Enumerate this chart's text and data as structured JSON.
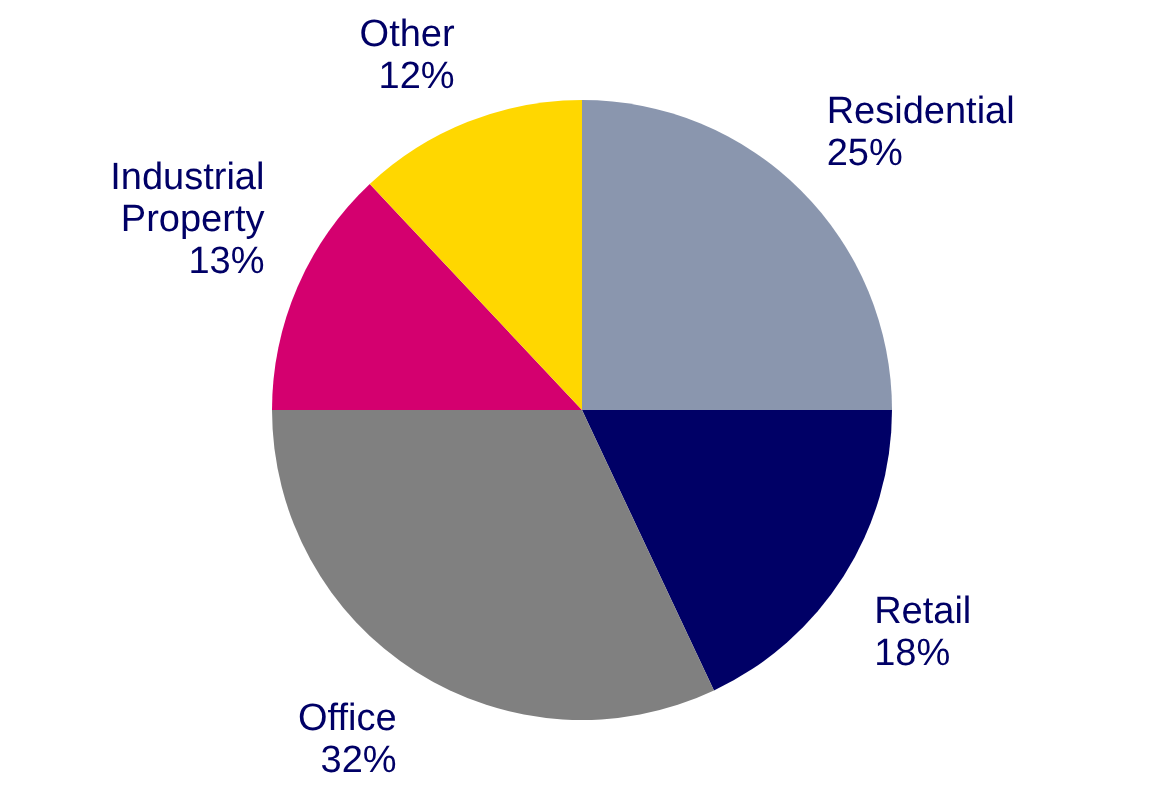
{
  "chart_data": {
    "type": "pie",
    "categories": [
      "Residential",
      "Retail",
      "Office",
      "Industrial Property",
      "Other"
    ],
    "values": [
      25,
      18,
      32,
      13,
      12
    ],
    "colors": [
      "#8a96ae",
      "#000066",
      "#808080",
      "#d4006f",
      "#ffd700"
    ],
    "value_labels": [
      "25%",
      "18%",
      "32%",
      "13%",
      "12%"
    ]
  }
}
